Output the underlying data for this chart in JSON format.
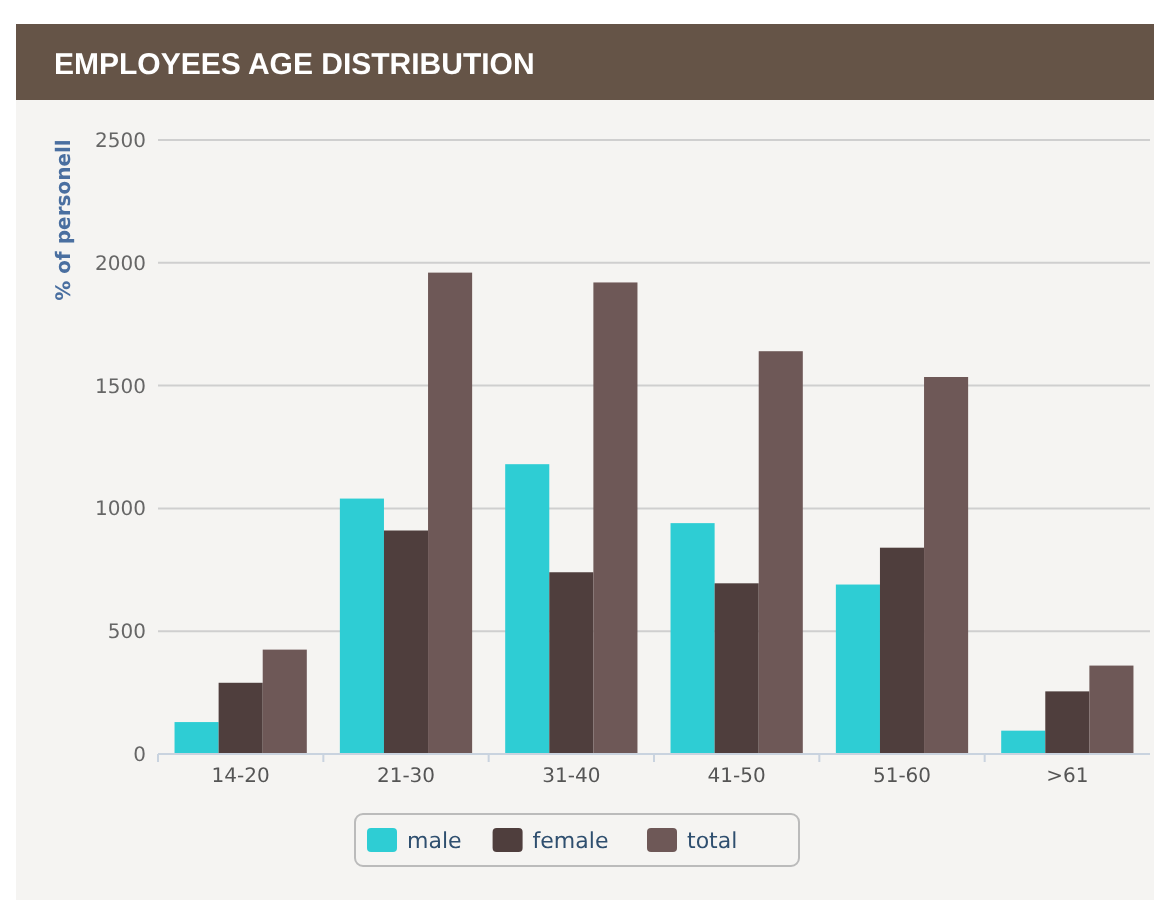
{
  "chart_data": {
    "type": "bar",
    "title": "EMPLOYEES AGE DISTRIBUTION",
    "ylabel": "% of personell",
    "categories": [
      "14-20",
      "21-30",
      "31-40",
      "41-50",
      "51-60",
      ">61"
    ],
    "series": [
      {
        "name": "male",
        "color": "#2ecdd4",
        "values": [
          130,
          1040,
          1180,
          940,
          690,
          95
        ]
      },
      {
        "name": "female",
        "color": "#4f3e3d",
        "values": [
          290,
          910,
          740,
          695,
          840,
          255
        ]
      },
      {
        "name": "total",
        "color": "#6e5857",
        "values": [
          425,
          1960,
          1920,
          1640,
          1535,
          360
        ]
      }
    ],
    "ylim": [
      0,
      2500
    ],
    "yticks": [
      0,
      500,
      1000,
      1500,
      2000,
      2500
    ],
    "grid": "y",
    "legend": "bottom"
  }
}
